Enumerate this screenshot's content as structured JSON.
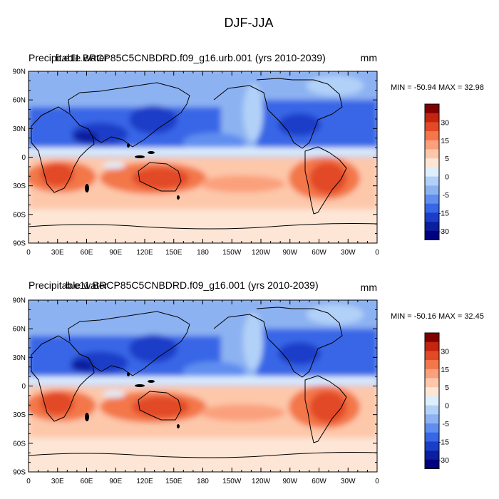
{
  "figure_title": "DJF-JJA",
  "panels": [
    {
      "title_left_1": "Precipitable water",
      "title_left_2": "b.e11.BRCP85C5CNBDRD.f09_g16.urb.001 (yrs 2010-2039)",
      "units": "mm",
      "minmax": "MIN = -50.94 MAX =  32.98"
    },
    {
      "title_left_1": "Precipitable water",
      "title_left_2": "b.e11.BRCP85C5CNBDRD.f09_g16.001 (yrs 2010-2039)",
      "units": "mm",
      "minmax": "MIN = -50.16 MAX =  32.45"
    }
  ],
  "axes": {
    "lat_labels": [
      "90N",
      "60N",
      "30N",
      "0",
      "30S",
      "60S",
      "90S"
    ],
    "lon_labels": [
      "0",
      "30E",
      "60E",
      "90E",
      "120E",
      "150E",
      "180",
      "150W",
      "120W",
      "90W",
      "60W",
      "30W",
      "0"
    ]
  },
  "colorbar": {
    "labels": [
      "30",
      "15",
      "5",
      "0",
      "-5",
      "-15",
      "-30"
    ],
    "colors": [
      "#800000",
      "#c4250f",
      "#e24a26",
      "#f3774a",
      "#fba07c",
      "#fdc7aa",
      "#fde6d6",
      "#ddeefd",
      "#b2d1f8",
      "#8db2f2",
      "#5f8ef0",
      "#3766e6",
      "#1a3ec8",
      "#0a1f9c",
      "#000080"
    ]
  },
  "chart_data": {
    "type": "heatmap",
    "title": "DJF-JJA",
    "variable": "Precipitable water",
    "units": "mm",
    "x_range": [
      0,
      360
    ],
    "y_range": [
      -90,
      90
    ],
    "color_levels": [
      30,
      15,
      5,
      0,
      -5,
      -15,
      -30
    ],
    "maps": [
      {
        "case": "b.e11.BRCP85C5CNBDRD.f09_g16.urb.001 (yrs 2010-2039)",
        "min": -50.94,
        "max": 32.98
      },
      {
        "case": "b.e11.BRCP85C5CNBDRD.f09_g16.001 (yrs 2010-2039)",
        "min": -50.16,
        "max": 32.45
      }
    ]
  }
}
